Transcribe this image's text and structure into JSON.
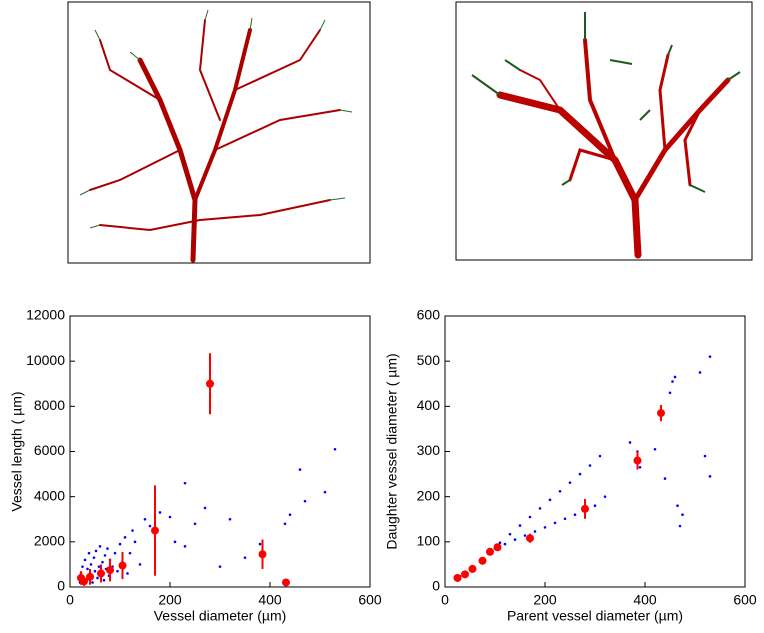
{
  "chart_data": [
    {
      "type": "scatter",
      "x_label": "Vessel diameter (µm)",
      "y_label": "Vessel length ( µm)",
      "xlim": [
        0,
        600
      ],
      "xticks": [
        0,
        200,
        400,
        600
      ],
      "ylim": [
        0,
        12000
      ],
      "yticks": [
        0,
        2000,
        4000,
        6000,
        8000,
        10000,
        12000
      ],
      "series": [
        {
          "color": "#0000ff",
          "x": [
            20,
            22,
            25,
            27,
            30,
            32,
            35,
            38,
            40,
            42,
            45,
            48,
            50,
            52,
            55,
            58,
            60,
            62,
            65,
            68,
            70,
            72,
            75,
            78,
            80,
            85,
            90,
            95,
            100,
            105,
            110,
            115,
            120,
            125,
            130,
            140,
            150,
            160,
            180,
            200,
            210,
            230,
            230,
            250,
            270,
            300,
            320,
            350,
            380,
            430,
            440,
            460,
            470,
            510,
            530
          ],
          "values": [
            200,
            600,
            900,
            400,
            1200,
            300,
            800,
            1500,
            500,
            1000,
            200,
            1300,
            700,
            1600,
            400,
            900,
            1800,
            600,
            1100,
            300,
            1400,
            800,
            1700,
            500,
            1200,
            900,
            1500,
            700,
            1900,
            1100,
            2200,
            600,
            1500,
            2500,
            2000,
            1000,
            3000,
            2700,
            3300,
            3100,
            2000,
            1800,
            4600,
            2800,
            3500,
            900,
            3000,
            1300,
            1900,
            2800,
            3200,
            5200,
            3800,
            4200,
            6100
          ]
        },
        {
          "color": "#ff0000",
          "x": [
            22,
            28,
            40,
            62,
            80,
            105,
            170,
            280,
            385,
            432
          ],
          "values": [
            400,
            250,
            450,
            600,
            750,
            950,
            2500,
            9000,
            1450,
            200
          ],
          "errors": [
            300,
            200,
            350,
            400,
            500,
            600,
            2000,
            1350,
            650,
            0
          ]
        }
      ]
    },
    {
      "type": "scatter",
      "x_label": "Parent vessel diameter (µm)",
      "y_label": "Daughter vessel diameter ( µm)",
      "xlim": [
        0,
        600
      ],
      "xticks": [
        0,
        200,
        400,
        600
      ],
      "ylim": [
        0,
        600
      ],
      "yticks": [
        0,
        100,
        200,
        300,
        400,
        500,
        600
      ],
      "series": [
        {
          "color": "#0000ff",
          "x": [
            30,
            50,
            70,
            90,
            110,
            130,
            150,
            170,
            190,
            210,
            230,
            250,
            270,
            290,
            310,
            100,
            120,
            140,
            160,
            180,
            200,
            220,
            240,
            260,
            280,
            300,
            320,
            370,
            385,
            390,
            420,
            440,
            450,
            455,
            460,
            465,
            470,
            475,
            510,
            520,
            530,
            530
          ],
          "values": [
            24,
            40,
            58,
            78,
            98,
            117,
            136,
            155,
            174,
            193,
            212,
            231,
            250,
            269,
            290,
            85,
            95,
            105,
            114,
            123,
            132,
            142,
            151,
            160,
            170,
            180,
            200,
            320,
            300,
            265,
            305,
            240,
            430,
            455,
            465,
            180,
            135,
            160,
            475,
            290,
            510,
            245
          ]
        },
        {
          "color": "#ff0000",
          "x": [
            25,
            40,
            55,
            75,
            90,
            105,
            170,
            280,
            385,
            432
          ],
          "values": [
            20,
            28,
            40,
            58,
            78,
            88,
            108,
            173,
            280,
            385
          ],
          "errors": [
            3,
            3,
            4,
            5,
            4,
            8,
            10,
            22,
            20,
            18
          ]
        }
      ]
    }
  ]
}
